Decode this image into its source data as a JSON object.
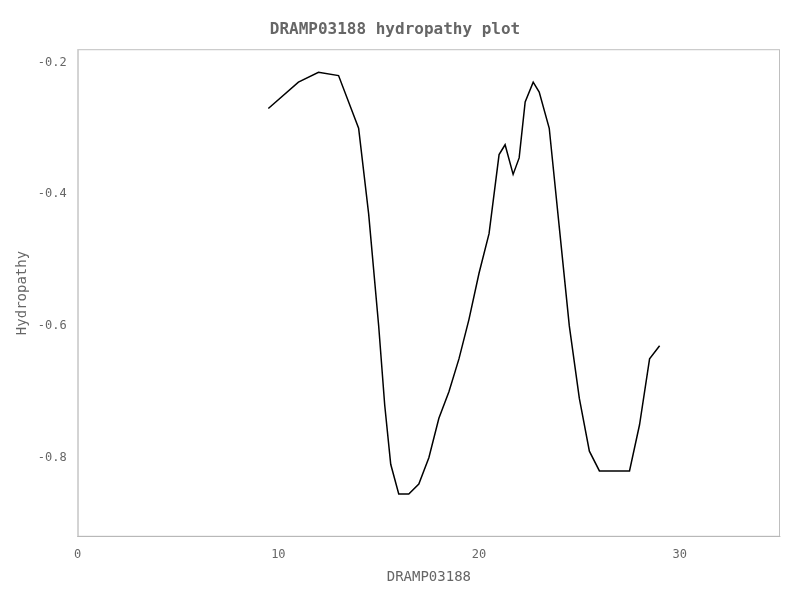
{
  "chart_data": {
    "type": "line",
    "title": "DRAMP03188 hydropathy plot",
    "xlabel": "DRAMP03188",
    "ylabel": "Hydropathy",
    "x": [
      9.5,
      11.0,
      12.0,
      13.0,
      14.0,
      14.5,
      15.0,
      15.3,
      15.6,
      16.0,
      16.5,
      17.0,
      17.5,
      18.0,
      18.5,
      19.0,
      19.5,
      20.0,
      20.5,
      21.0,
      21.3,
      21.7,
      22.0,
      22.3,
      22.7,
      23.0,
      23.5,
      24.0,
      24.5,
      25.0,
      25.5,
      26.0,
      26.5,
      27.5,
      28.0,
      28.5,
      29.0
    ],
    "values": [
      -0.27,
      -0.23,
      -0.215,
      -0.22,
      -0.3,
      -0.43,
      -0.6,
      -0.72,
      -0.81,
      -0.855,
      -0.855,
      -0.84,
      -0.8,
      -0.74,
      -0.7,
      -0.65,
      -0.59,
      -0.52,
      -0.46,
      -0.34,
      -0.325,
      -0.37,
      -0.345,
      -0.26,
      -0.23,
      -0.245,
      -0.3,
      -0.45,
      -0.6,
      -0.71,
      -0.79,
      -0.82,
      -0.82,
      -0.82,
      -0.75,
      -0.65,
      -0.63
    ],
    "color": "#000000",
    "xlim": [
      0,
      35
    ],
    "ylim": [
      -0.92,
      -0.18
    ],
    "xticks": [
      0,
      10,
      20,
      30
    ],
    "yticks": [
      -0.8,
      -0.6,
      -0.4,
      -0.2
    ],
    "grid": false
  }
}
